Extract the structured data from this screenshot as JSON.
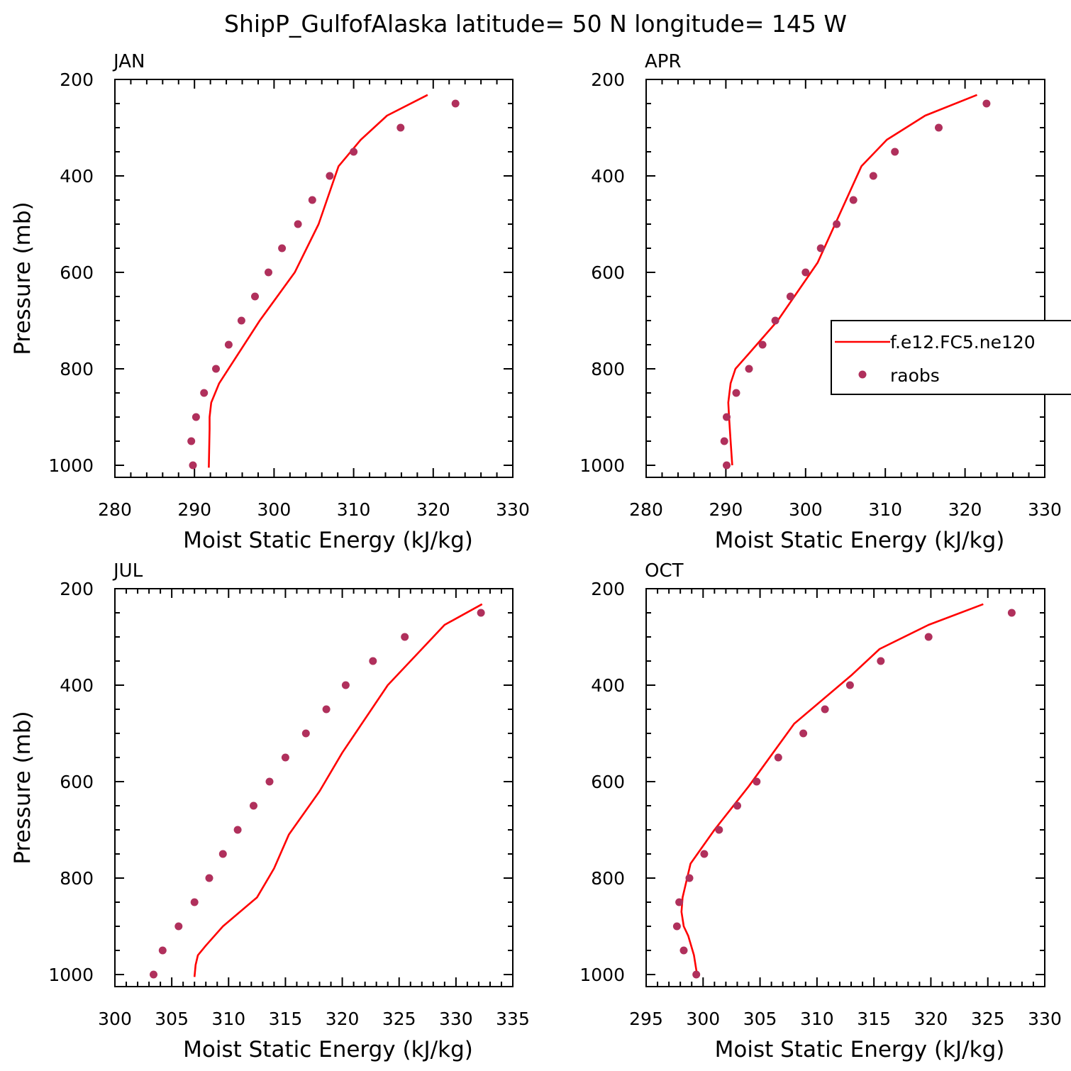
{
  "title": "ShipP_GulfofAlaska  latitude= 50 N longitude= 145 W",
  "colors": {
    "model": "#ff0000",
    "obs": "#b0305c",
    "axis": "#000000"
  },
  "legend": {
    "model_label": "f.e12.FC5.ne120",
    "obs_label": "raobs",
    "panel": 1
  },
  "chart_data": [
    {
      "type": "line",
      "panel_label": "JAN",
      "xlabel": "Moist Static Energy (kJ/kg)",
      "ylabel": "Pressure (mb)",
      "xlim": [
        280,
        330
      ],
      "ylim": [
        1025,
        200
      ],
      "xticks": [
        280,
        290,
        300,
        310,
        320,
        330
      ],
      "yticks": [
        200,
        400,
        600,
        800,
        1000
      ],
      "series": [
        {
          "name": "f.e12.FC5.ne120",
          "style": "line",
          "x": [
            291.8,
            291.9,
            291.9,
            292.1,
            293.1,
            298.2,
            302.6,
            305.6,
            308.1,
            310.9,
            314.2,
            319.3
          ],
          "y": [
            1005,
            925,
            900,
            870,
            830,
            700,
            600,
            500,
            380,
            325,
            275,
            232
          ]
        },
        {
          "name": "raobs",
          "style": "points",
          "x": [
            289.8,
            289.6,
            290.2,
            291.2,
            292.7,
            294.3,
            295.9,
            297.6,
            299.3,
            301.0,
            303.0,
            304.8,
            307.0,
            310.0,
            315.9,
            322.8
          ],
          "y": [
            1000,
            950,
            900,
            850,
            800,
            750,
            700,
            650,
            600,
            550,
            500,
            450,
            400,
            350,
            300,
            250
          ]
        }
      ]
    },
    {
      "type": "line",
      "panel_label": "APR",
      "xlabel": "Moist Static Energy (kJ/kg)",
      "ylabel": "",
      "xlim": [
        280,
        330
      ],
      "ylim": [
        1025,
        200
      ],
      "xticks": [
        280,
        290,
        300,
        310,
        320,
        330
      ],
      "yticks": [
        200,
        400,
        600,
        800,
        1000
      ],
      "series": [
        {
          "name": "f.e12.FC5.ne120",
          "style": "line",
          "x": [
            290.8,
            290.6,
            290.4,
            290.3,
            290.6,
            291.2,
            292.8,
            296.5,
            301.5,
            307.0,
            310.2,
            315.0,
            321.5
          ],
          "y": [
            1000,
            950,
            900,
            870,
            830,
            800,
            770,
            700,
            580,
            380,
            325,
            275,
            232
          ]
        },
        {
          "name": "raobs",
          "style": "points",
          "x": [
            290.1,
            289.8,
            290.1,
            291.3,
            292.9,
            294.6,
            296.2,
            298.1,
            300.0,
            301.9,
            303.9,
            306.0,
            308.5,
            311.2,
            316.7,
            322.7
          ],
          "y": [
            1000,
            950,
            900,
            850,
            800,
            750,
            700,
            650,
            600,
            550,
            500,
            450,
            400,
            350,
            300,
            250
          ]
        }
      ]
    },
    {
      "type": "line",
      "panel_label": "JUL",
      "xlabel": "Moist Static Energy (kJ/kg)",
      "ylabel": "Pressure (mb)",
      "xlim": [
        300,
        335
      ],
      "ylim": [
        1025,
        200
      ],
      "xticks": [
        300,
        305,
        310,
        315,
        320,
        325,
        330,
        335
      ],
      "yticks": [
        200,
        400,
        600,
        800,
        1000
      ],
      "series": [
        {
          "name": "f.e12.FC5.ne120",
          "style": "line",
          "x": [
            307.0,
            307.1,
            307.3,
            308.0,
            309.5,
            312.5,
            314.0,
            315.3,
            318.0,
            320.0,
            324.0,
            327.0,
            329.0,
            332.3
          ],
          "y": [
            1005,
            980,
            960,
            940,
            900,
            840,
            780,
            710,
            620,
            540,
            400,
            325,
            275,
            232
          ]
        },
        {
          "name": "raobs",
          "style": "points",
          "x": [
            303.4,
            304.2,
            305.6,
            307.0,
            308.3,
            309.5,
            310.8,
            312.2,
            313.6,
            315.0,
            316.8,
            318.6,
            320.3,
            322.7,
            325.5,
            332.2
          ],
          "y": [
            1000,
            950,
            900,
            850,
            800,
            750,
            700,
            650,
            600,
            550,
            500,
            450,
            400,
            350,
            300,
            250
          ]
        }
      ]
    },
    {
      "type": "line",
      "panel_label": "OCT",
      "xlabel": "Moist Static Energy (kJ/kg)",
      "ylabel": "",
      "xlim": [
        295,
        330
      ],
      "ylim": [
        1025,
        200
      ],
      "xticks": [
        295,
        300,
        305,
        310,
        315,
        320,
        325,
        330
      ],
      "yticks": [
        200,
        400,
        600,
        800,
        1000
      ],
      "series": [
        {
          "name": "f.e12.FC5.ne120",
          "style": "line",
          "x": [
            299.5,
            299.2,
            298.7,
            298.3,
            298.1,
            298.2,
            298.6,
            298.9,
            301.0,
            304.0,
            308.0,
            313.0,
            315.5,
            319.8,
            324.6
          ],
          "y": [
            1005,
            960,
            920,
            900,
            870,
            840,
            800,
            770,
            700,
            610,
            480,
            380,
            325,
            275,
            232
          ]
        },
        {
          "name": "raobs",
          "style": "points",
          "x": [
            299.4,
            298.3,
            297.7,
            297.9,
            298.8,
            300.1,
            301.4,
            303.0,
            304.7,
            306.6,
            308.8,
            310.7,
            312.9,
            315.6,
            319.8,
            327.1
          ],
          "y": [
            1000,
            950,
            900,
            850,
            800,
            750,
            700,
            650,
            600,
            550,
            500,
            450,
            400,
            350,
            300,
            250
          ]
        }
      ]
    }
  ]
}
